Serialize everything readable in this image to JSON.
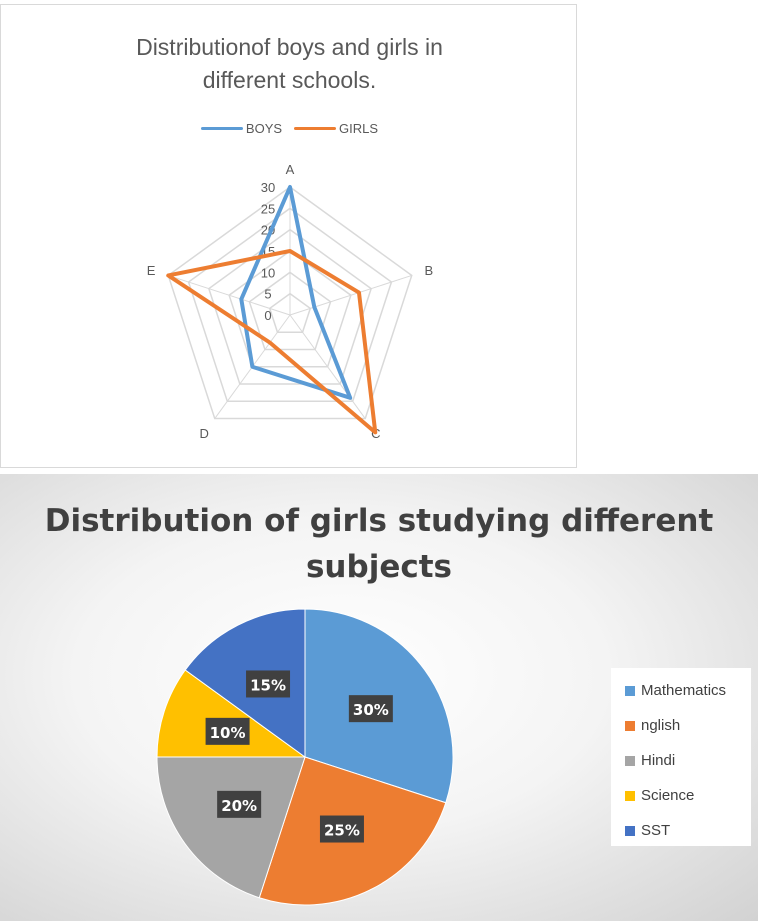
{
  "chart_data": [
    {
      "type": "radar",
      "title": "Distributionof boys and girls in\ndifferent schools.",
      "categories": [
        "A",
        "B",
        "C",
        "D",
        "E"
      ],
      "radial_ticks": [
        "0",
        "5",
        "10",
        "15",
        "20",
        "25",
        "30"
      ],
      "rmax": 30,
      "grid": true,
      "legend_position": "top",
      "series": [
        {
          "name": "BOYS",
          "color": "#5b9bd5",
          "values": [
            30,
            6,
            24,
            15,
            12
          ]
        },
        {
          "name": "GIRLS",
          "color": "#ed7d31",
          "values": [
            15,
            17,
            34,
            8,
            30
          ]
        }
      ]
    },
    {
      "type": "pie",
      "title": "Distribution of girls studying different\nsubjects",
      "legend_position": "right",
      "slices": [
        {
          "label": "Mathematics",
          "value": 30,
          "display": "30%",
          "color": "#5b9bd5"
        },
        {
          "label": "nglish",
          "value": 25,
          "display": "25%",
          "color": "#ed7d31"
        },
        {
          "label": "Hindi",
          "value": 20,
          "display": "20%",
          "color": "#a5a5a5"
        },
        {
          "label": "Science",
          "value": 10,
          "display": "10%",
          "color": "#ffc000"
        },
        {
          "label": "SST",
          "value": 15,
          "display": "15%",
          "color": "#4472c4"
        }
      ]
    }
  ]
}
